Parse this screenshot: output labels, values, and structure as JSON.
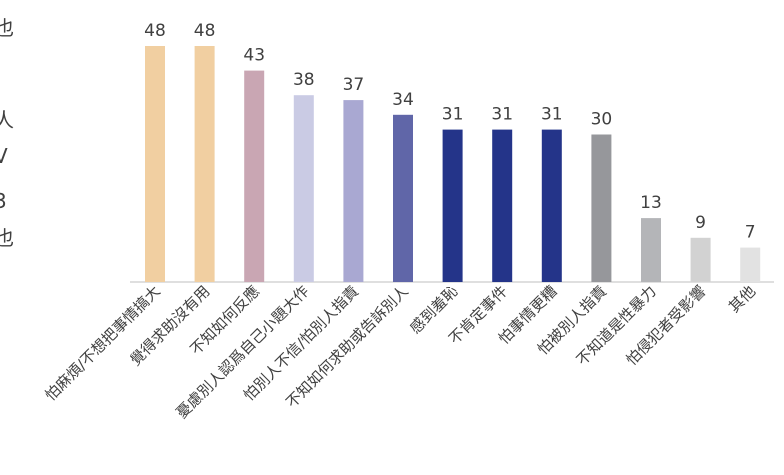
{
  "chart_data": {
    "type": "bar",
    "title": "",
    "xlabel": "",
    "ylabel": "",
    "ylim": [
      0,
      50
    ],
    "grid": false,
    "legend": "none",
    "categories": [
      "怕麻煩/不想把事情搞大",
      "覺得求助沒有用",
      "不知如何反應",
      "憂慮別人認爲自己小題大作",
      "怕別人不信/怕別人指責",
      "不知如何求助或告訴別人",
      "感到羞恥",
      "不肯定事件",
      "怕事情更糟",
      "怕被別人指責",
      "不知道是性暴力",
      "怕侵犯者受影響",
      "其他"
    ],
    "values": [
      48,
      48,
      43,
      38,
      37,
      34,
      31,
      31,
      31,
      30,
      13,
      9,
      7
    ],
    "colors": [
      "#f1cfa1",
      "#f1cfa1",
      "#c9a6b3",
      "#cacbe4",
      "#a9a8d2",
      "#6066a8",
      "#243489",
      "#243489",
      "#243489",
      "#96979b",
      "#b4b5b8",
      "#d2d2d2",
      "#e2e2e2"
    ],
    "left_fragments": [
      "也",
      "人",
      "V",
      "3",
      "也"
    ]
  }
}
